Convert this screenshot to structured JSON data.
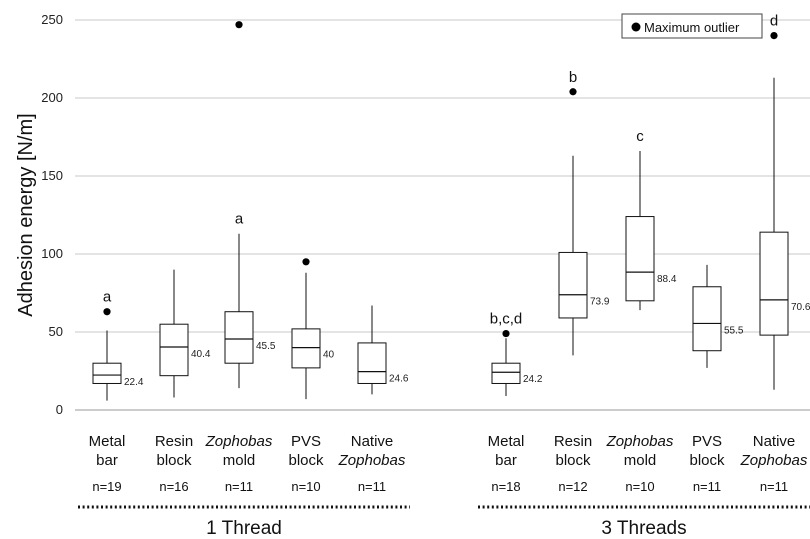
{
  "chart_data": {
    "type": "box",
    "ylabel": "Adhesion energy [N/m]",
    "ylim": [
      0,
      250
    ],
    "yticks": [
      0,
      50,
      100,
      150,
      200,
      250
    ],
    "grid": true,
    "legend": {
      "label": "Maximum outlier",
      "placement": "top-right"
    },
    "groups": [
      {
        "label": "1 Thread",
        "boxes": [
          {
            "line1": "Metal",
            "line2": "bar",
            "italic1": false,
            "italic2": false,
            "n": "n=19",
            "whisker_low": 6,
            "q1": 17,
            "median": 22.4,
            "q3": 30,
            "whisker_high": 51,
            "outlier": 63,
            "median_label": "22.4",
            "sig": "a"
          },
          {
            "line1": "Resin",
            "line2": "block",
            "italic1": false,
            "italic2": false,
            "n": "n=16",
            "whisker_low": 8,
            "q1": 22,
            "median": 40.4,
            "q3": 55,
            "whisker_high": 90,
            "outlier": null,
            "median_label": "40.4",
            "sig": ""
          },
          {
            "line1": "Zophobas",
            "line2": "mold",
            "italic1": true,
            "italic2": false,
            "n": "n=11",
            "whisker_low": 14,
            "q1": 30,
            "median": 45.5,
            "q3": 63,
            "whisker_high": 113,
            "outlier": 247,
            "median_label": "45.5",
            "sig": "a"
          },
          {
            "line1": "PVS",
            "line2": "block",
            "italic1": false,
            "italic2": false,
            "n": "n=10",
            "whisker_low": 7,
            "q1": 27,
            "median": 40,
            "q3": 52,
            "whisker_high": 88,
            "outlier": 95,
            "median_label": "40",
            "sig": ""
          },
          {
            "line1": "Native",
            "line2": "Zophobas",
            "italic1": false,
            "italic2": true,
            "n": "n=11",
            "whisker_low": 10,
            "q1": 17,
            "median": 24.6,
            "q3": 43,
            "whisker_high": 67,
            "outlier": null,
            "median_label": "24.6",
            "sig": ""
          }
        ]
      },
      {
        "label": "3 Threads",
        "boxes": [
          {
            "line1": "Metal",
            "line2": "bar",
            "italic1": false,
            "italic2": false,
            "n": "n=18",
            "whisker_low": 9,
            "q1": 17,
            "median": 24.2,
            "q3": 30,
            "whisker_high": 46,
            "outlier": 49,
            "median_label": "24.2",
            "sig": "b,c,d"
          },
          {
            "line1": "Resin",
            "line2": "block",
            "italic1": false,
            "italic2": false,
            "n": "n=12",
            "whisker_low": 35,
            "q1": 59,
            "median": 73.9,
            "q3": 101,
            "whisker_high": 163,
            "outlier": 204,
            "median_label": "73.9",
            "sig": "b"
          },
          {
            "line1": "Zophobas",
            "line2": "mold",
            "italic1": true,
            "italic2": false,
            "n": "n=10",
            "whisker_low": 64,
            "q1": 70,
            "median": 88.4,
            "q3": 124,
            "whisker_high": 166,
            "outlier": null,
            "median_label": "88.4",
            "sig": "c"
          },
          {
            "line1": "PVS",
            "line2": "block",
            "italic1": false,
            "italic2": false,
            "n": "n=11",
            "whisker_low": 27,
            "q1": 38,
            "median": 55.5,
            "q3": 79,
            "whisker_high": 93,
            "outlier": null,
            "median_label": "55.5",
            "sig": ""
          },
          {
            "line1": "Native",
            "line2": "Zophobas",
            "italic1": false,
            "italic2": true,
            "n": "n=11",
            "whisker_low": 13,
            "q1": 48,
            "median": 70.6,
            "q3": 114,
            "whisker_high": 213,
            "outlier": 240,
            "median_label": "70.6",
            "sig": "d"
          }
        ]
      }
    ]
  }
}
